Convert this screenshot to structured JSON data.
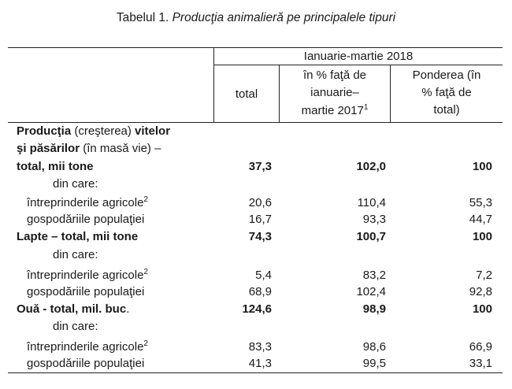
{
  "caption": {
    "label": "Tabelul 1.",
    "title": "Producţia animalieră pe principalele tipuri"
  },
  "header": {
    "period": "Ianuarie-martie 2018",
    "col_total": "total",
    "col_pct_lines": [
      "în % faţă de",
      "ianuarie–",
      "martie 2017"
    ],
    "col_pct_sup": "1",
    "col_share_lines": [
      "Ponderea (în",
      "% faţă de",
      "total)"
    ]
  },
  "sections": [
    {
      "title_lines": [
        [
          {
            "t": "Producţia",
            "b": true
          },
          {
            "t": " (creşterea) ",
            "b": false
          },
          {
            "t": "vitelor",
            "b": true
          }
        ],
        [
          {
            "t": "şi păsărilor",
            "b": true
          },
          {
            "t": " (în masă vie) –",
            "b": false
          }
        ],
        [
          {
            "t": "total, mii tone",
            "b": true
          }
        ]
      ],
      "total": "37,3",
      "pct": "102,0",
      "share": "100",
      "din_care": "din care:",
      "rows": [
        {
          "label": "întreprinderile agricole",
          "sup": "2",
          "total": "20,6",
          "pct": "110,4",
          "share": "55,3"
        },
        {
          "label": "gospodăriile populaţiei",
          "sup": "",
          "total": "16,7",
          "pct": "93,3",
          "share": "44,7"
        }
      ]
    },
    {
      "title_lines": [
        [
          {
            "t": "Lapte – total, mii tone",
            "b": true
          }
        ]
      ],
      "total": "74,3",
      "pct": "100,7",
      "share": "100",
      "din_care": "din care:",
      "rows": [
        {
          "label": "întreprinderile agricole",
          "sup": "2",
          "total": "5,4",
          "pct": "83,2",
          "share": "7,2"
        },
        {
          "label": "gospodăriile populaţiei",
          "sup": "",
          "total": "68,9",
          "pct": "102,4",
          "share": "92,8"
        }
      ]
    },
    {
      "title_lines": [
        [
          {
            "t": "Ouă - total, mil. buc",
            "b": true
          },
          {
            "t": ".",
            "b": false
          }
        ]
      ],
      "total": "124,6",
      "pct": "98,9",
      "share": "100",
      "din_care": "din care:",
      "rows": [
        {
          "label": "întreprinderile agricole",
          "sup": "2",
          "total": "83,3",
          "pct": "98,6",
          "share": "66,9"
        },
        {
          "label": "gospodăriile populaţiei",
          "sup": "",
          "total": "41,3",
          "pct": "99,5",
          "share": "33,1"
        }
      ]
    }
  ]
}
